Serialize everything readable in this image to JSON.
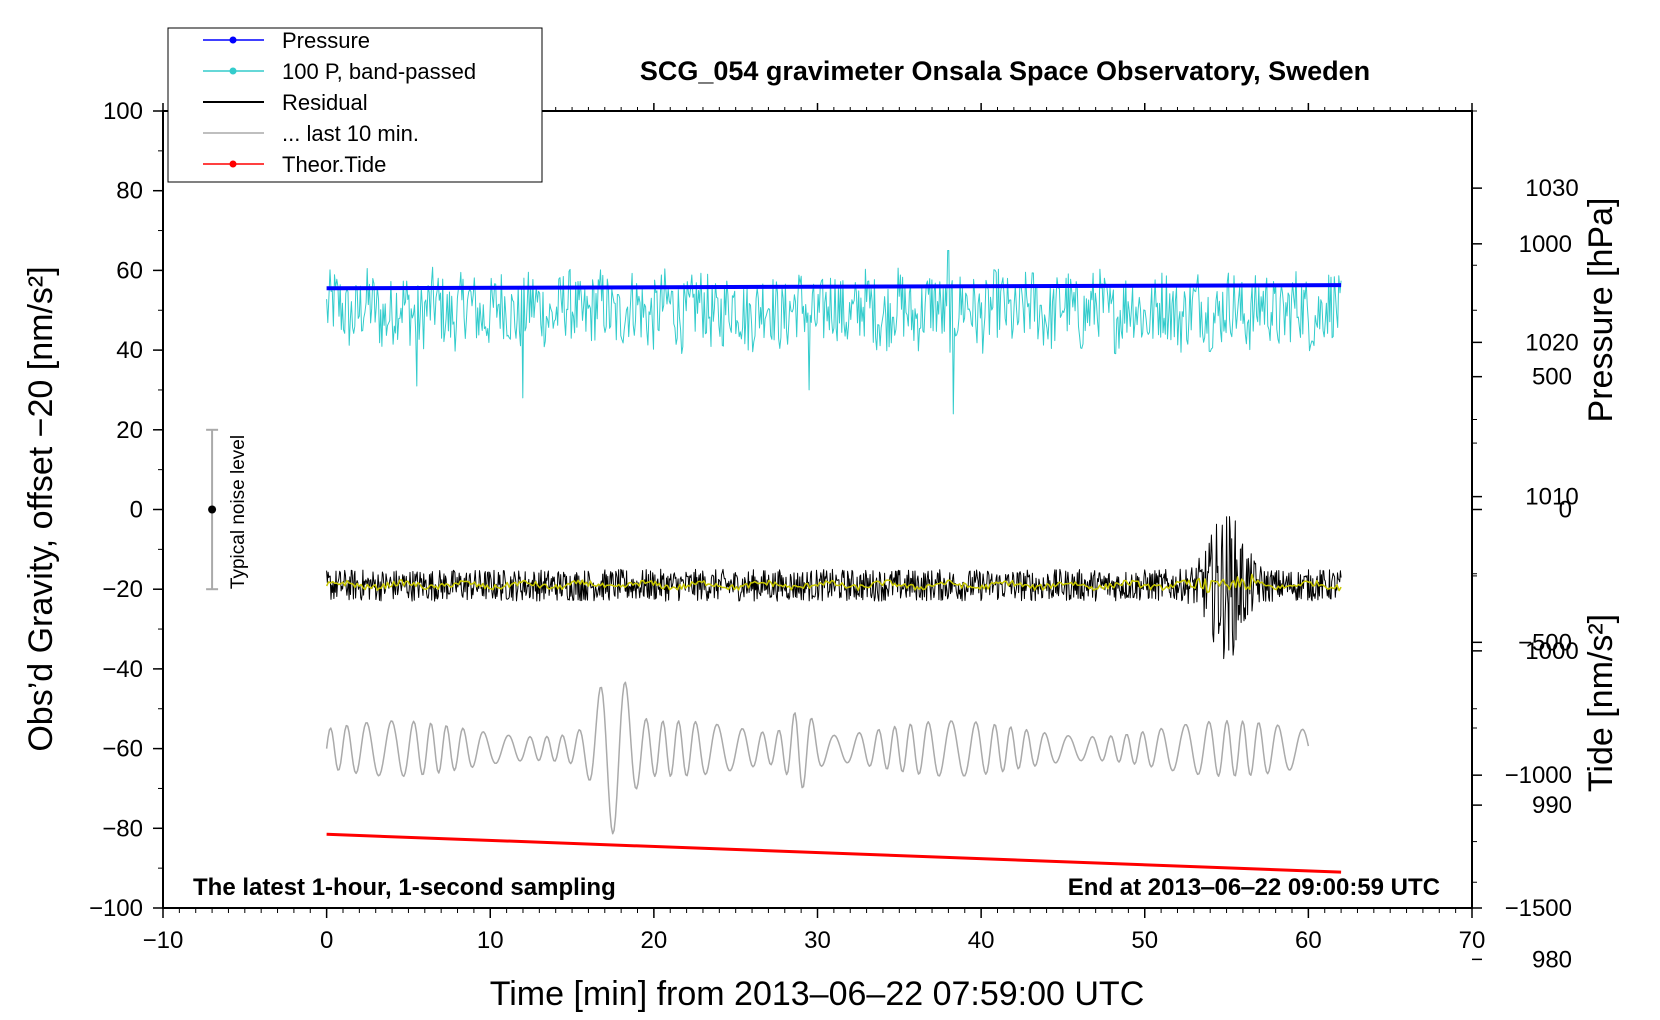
{
  "chart_data": {
    "type": "line",
    "title": "SCG_054 gravimeter Onsala Space Observatory, Sweden",
    "xlabel": "Time [min] from 2013‒06‒22 07:59:00 UTC",
    "ylabel": "Obs’d Gravity, offset −20 [nm/s²]",
    "ylabel_right_pressure": "Pressure [hPa]",
    "ylabel_right_tide": "Tide [nm/s²]",
    "xlim": [
      -10,
      70
    ],
    "ylim": [
      -100,
      100
    ],
    "pressure_axis_range": [
      983.33,
      1035
    ],
    "tide_axis_range": [
      -1500,
      1500
    ],
    "x_ticks": [
      "−10",
      "0",
      "10",
      "20",
      "30",
      "40",
      "50",
      "60",
      "70"
    ],
    "y_ticks": [
      "−100",
      "−80",
      "−60",
      "−40",
      "−20",
      "0",
      "20",
      "40",
      "60",
      "80",
      "100"
    ],
    "pressure_ticks": [
      "980",
      "990",
      "1000",
      "1010",
      "1020",
      "1030"
    ],
    "tide_ticks": [
      "−1500",
      "−1000",
      "−500",
      "0",
      "500",
      "1000"
    ],
    "annotation_left": "The latest 1‑hour, 1‑second sampling",
    "annotation_right": "End at 2013‒06‒22 09:00:59 UTC",
    "noise_label": "Typical noise level",
    "noise_bar": {
      "x": -7,
      "center": 0,
      "half_range": 20
    },
    "legend": {
      "position": "top-left",
      "entries": [
        {
          "name": "Pressure",
          "color": "#0000ff",
          "marker": true
        },
        {
          "name": "100 P, band‑passed",
          "color": "#33cccc",
          "marker": true
        },
        {
          "name": "Residual",
          "color": "#000000",
          "marker": false
        },
        {
          "name": "... last 10 min.",
          "color": "#aaaaaa",
          "marker": false
        },
        {
          "name": "Theor.Tide",
          "color": "#ff0000",
          "marker": true
        }
      ]
    },
    "series": [
      {
        "key": "pressure",
        "color": "#0000ff",
        "x_range": [
          0,
          62
        ],
        "y_start": 55.5,
        "y_end": 56.3
      },
      {
        "key": "band_passed",
        "color": "#33cccc",
        "x_range": [
          0,
          62
        ],
        "y_center": 50,
        "y_min": 24,
        "y_max": 65
      },
      {
        "key": "residual",
        "color": "#000000",
        "x_range": [
          0,
          62
        ],
        "y_center": -19,
        "y_min": -41,
        "y_max": 3
      },
      {
        "key": "residual_smoothed",
        "color": "#c8c800",
        "x_range": [
          0,
          62
        ],
        "y_center": -19
      },
      {
        "key": "last_10_min",
        "color": "#aaaaaa",
        "x_range": [
          0,
          60
        ],
        "y_center": -60,
        "y_min": -83,
        "y_max": -39
      },
      {
        "key": "theor_tide",
        "color": "#ff0000",
        "x_range": [
          0,
          62
        ],
        "y_start": -81.5,
        "y_end": -91
      }
    ]
  }
}
